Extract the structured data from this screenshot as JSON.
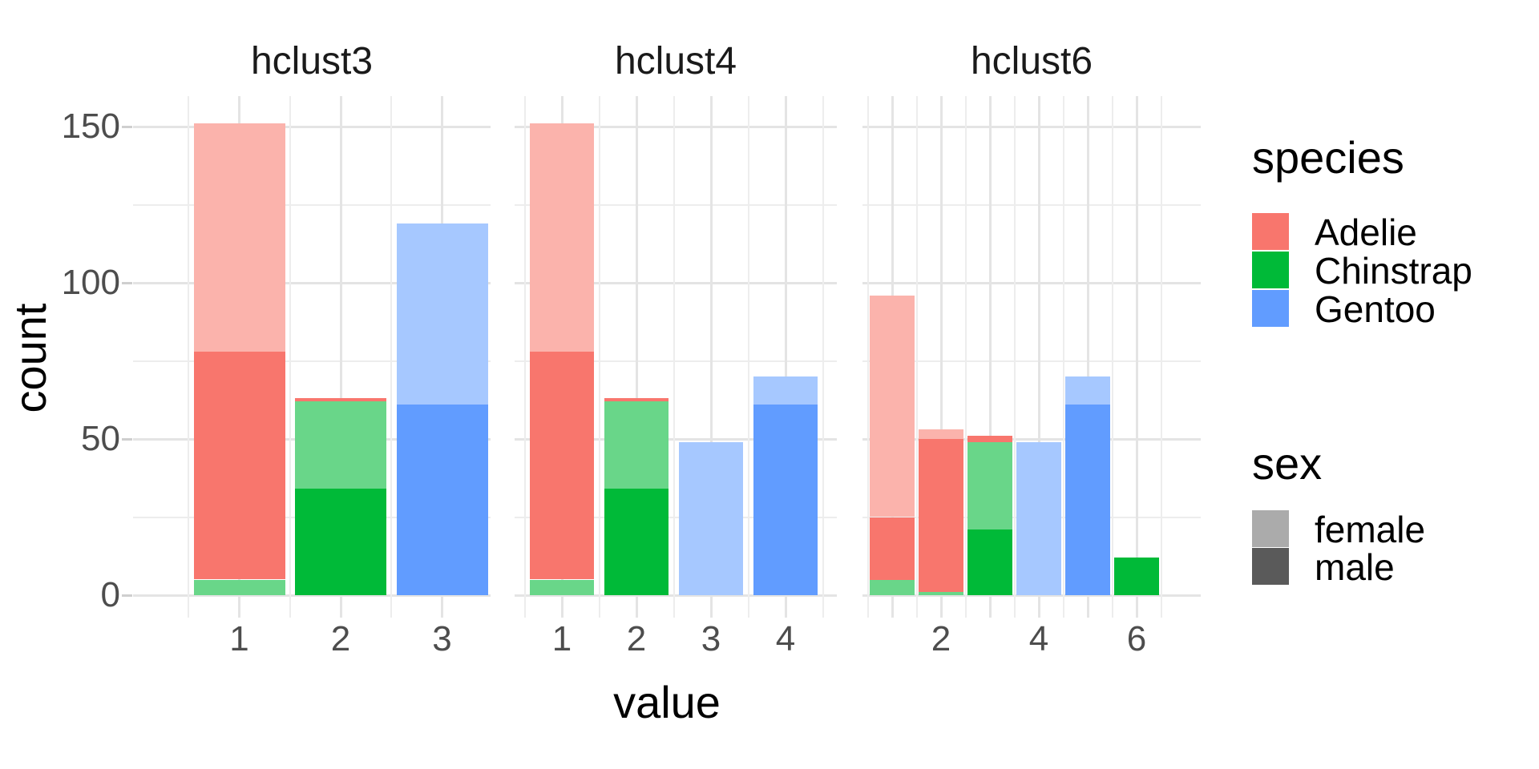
{
  "chart_data": {
    "type": "bar",
    "stacked": true,
    "xlabel": "value",
    "ylabel": "count",
    "ylim": [
      0,
      160
    ],
    "yticks": [
      0,
      50,
      100,
      150
    ],
    "yminor": [
      25,
      75,
      125
    ],
    "grid": true,
    "legend_position": "right",
    "facets": [
      {
        "label": "hclust3",
        "bars": [
          {
            "x": "1",
            "segments": [
              {
                "species": "Chinstrap",
                "sex": "female",
                "value": 5
              },
              {
                "species": "Adelie",
                "sex": "male",
                "value": 73
              },
              {
                "species": "Adelie",
                "sex": "female",
                "value": 73
              }
            ]
          },
          {
            "x": "2",
            "segments": [
              {
                "species": "Chinstrap",
                "sex": "male",
                "value": 34
              },
              {
                "species": "Chinstrap",
                "sex": "female",
                "value": 28
              },
              {
                "species": "Adelie",
                "sex": "male",
                "value": 1
              }
            ]
          },
          {
            "x": "3",
            "segments": [
              {
                "species": "Gentoo",
                "sex": "male",
                "value": 61
              },
              {
                "species": "Gentoo",
                "sex": "female",
                "value": 58
              }
            ]
          }
        ],
        "xticks": [
          {
            "bar": 0,
            "label": "1"
          },
          {
            "bar": 1,
            "label": "2"
          },
          {
            "bar": 2,
            "label": "3"
          }
        ]
      },
      {
        "label": "hclust4",
        "bars": [
          {
            "x": "1",
            "segments": [
              {
                "species": "Chinstrap",
                "sex": "female",
                "value": 5
              },
              {
                "species": "Adelie",
                "sex": "male",
                "value": 73
              },
              {
                "species": "Adelie",
                "sex": "female",
                "value": 73
              }
            ]
          },
          {
            "x": "2",
            "segments": [
              {
                "species": "Chinstrap",
                "sex": "male",
                "value": 34
              },
              {
                "species": "Chinstrap",
                "sex": "female",
                "value": 28
              },
              {
                "species": "Adelie",
                "sex": "male",
                "value": 1
              }
            ]
          },
          {
            "x": "3",
            "segments": [
              {
                "species": "Gentoo",
                "sex": "female",
                "value": 49
              }
            ]
          },
          {
            "x": "4",
            "segments": [
              {
                "species": "Gentoo",
                "sex": "male",
                "value": 61
              },
              {
                "species": "Gentoo",
                "sex": "female",
                "value": 9
              }
            ]
          }
        ],
        "xticks": [
          {
            "bar": 0,
            "label": "1"
          },
          {
            "bar": 1,
            "label": "2"
          },
          {
            "bar": 2,
            "label": "3"
          },
          {
            "bar": 3,
            "label": "4"
          }
        ]
      },
      {
        "label": "hclust6",
        "bars": [
          {
            "x": "1",
            "segments": [
              {
                "species": "Chinstrap",
                "sex": "female",
                "value": 5
              },
              {
                "species": "Adelie",
                "sex": "male",
                "value": 20
              },
              {
                "species": "Adelie",
                "sex": "female",
                "value": 71
              }
            ]
          },
          {
            "x": "2",
            "segments": [
              {
                "species": "Chinstrap",
                "sex": "female",
                "value": 1
              },
              {
                "species": "Adelie",
                "sex": "male",
                "value": 49
              },
              {
                "species": "Adelie",
                "sex": "female",
                "value": 3
              }
            ]
          },
          {
            "x": "3",
            "segments": [
              {
                "species": "Chinstrap",
                "sex": "male",
                "value": 21
              },
              {
                "species": "Chinstrap",
                "sex": "female",
                "value": 28
              },
              {
                "species": "Adelie",
                "sex": "male",
                "value": 2
              }
            ]
          },
          {
            "x": "4",
            "segments": [
              {
                "species": "Gentoo",
                "sex": "female",
                "value": 49
              }
            ]
          },
          {
            "x": "5",
            "segments": [
              {
                "species": "Gentoo",
                "sex": "male",
                "value": 61
              },
              {
                "species": "Gentoo",
                "sex": "female",
                "value": 9
              }
            ]
          },
          {
            "x": "6",
            "segments": [
              {
                "species": "Chinstrap",
                "sex": "male",
                "value": 12
              }
            ]
          }
        ],
        "xticks": [
          {
            "bar": 1,
            "label": "2"
          },
          {
            "bar": 3,
            "label": "4"
          },
          {
            "bar": 5,
            "label": "6"
          }
        ]
      }
    ],
    "colors": {
      "fill": {
        "Adelie": {
          "male": "#F8766D",
          "female": "#FBB3AC"
        },
        "Chinstrap": {
          "male": "#00BA38",
          "female": "#69D689"
        },
        "Gentoo": {
          "male": "#619CFF",
          "female": "#A6C8FF"
        }
      },
      "grid_major": "#E4E4E4",
      "grid_minor": "#EDEDED",
      "tick_text": "#4D4D4D",
      "axis_tick": "#CFCFCF",
      "background": "#FFFFFF"
    }
  },
  "legend": {
    "species": {
      "title": "species",
      "entries": [
        {
          "label": "Adelie",
          "color": "#F8766D"
        },
        {
          "label": "Chinstrap",
          "color": "#00BA38"
        },
        {
          "label": "Gentoo",
          "color": "#619CFF"
        }
      ]
    },
    "sex": {
      "title": "sex",
      "entries": [
        {
          "label": "female",
          "color": "#ABABAB"
        },
        {
          "label": "male",
          "color": "#5A5A5A"
        }
      ]
    }
  }
}
